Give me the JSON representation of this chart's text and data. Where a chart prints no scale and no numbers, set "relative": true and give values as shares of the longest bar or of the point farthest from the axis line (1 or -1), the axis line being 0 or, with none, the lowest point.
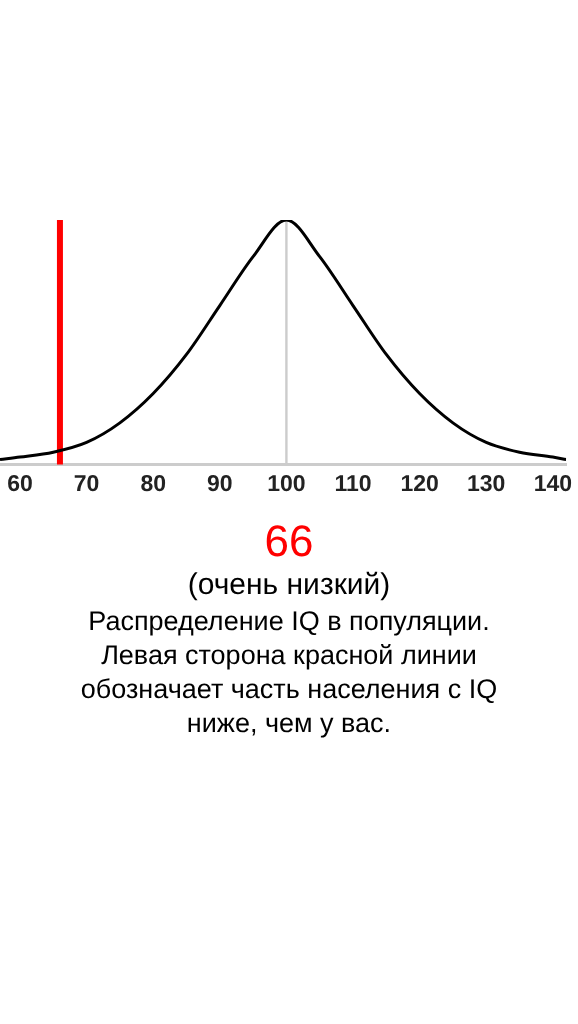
{
  "chart_data": {
    "type": "line",
    "relative": true,
    "x": [
      57,
      60,
      65,
      70,
      75,
      80,
      85,
      90,
      95,
      100,
      105,
      110,
      115,
      120,
      125,
      130,
      135,
      140,
      142
    ],
    "series": [
      {
        "color": "#000000",
        "values": [
          0.02,
          0.03,
          0.05,
          0.09,
          0.17,
          0.29,
          0.45,
          0.65,
          0.85,
          1,
          0.85,
          0.65,
          0.45,
          0.29,
          0.17,
          0.09,
          0.05,
          0.03,
          0.02
        ]
      }
    ],
    "xlim": [
      57,
      142
    ],
    "xticks": [
      60,
      70,
      80,
      90,
      100,
      110,
      120,
      130,
      140
    ],
    "grid": false,
    "legend": false,
    "marker": "none",
    "line_style": "solid",
    "ref_lines": [
      {
        "axis": "x",
        "value": 66,
        "label": "66",
        "color": "#ff0000"
      },
      {
        "axis": "x",
        "value": 100,
        "color": "#cccccc"
      }
    ],
    "annotations": [
      "(очень низкий)",
      "Распределение IQ в популяции. Левая сторона красной линии обозначает часть населения с IQ ниже, чем у вас."
    ]
  }
}
